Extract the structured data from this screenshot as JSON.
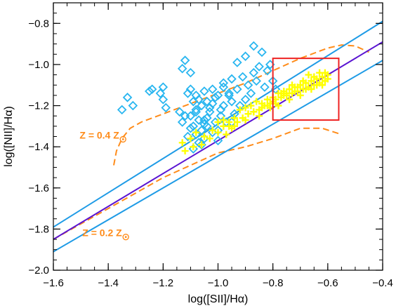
{
  "chart_data": {
    "type": "scatter",
    "xlabel": "log([SII]/Hα)",
    "ylabel": "log([NII]/Hα)",
    "xlim": [
      -1.6,
      -0.4
    ],
    "ylim": [
      -2.0,
      -0.7
    ],
    "x_ticks": [
      "−1.6",
      "−1.4",
      "−1.2",
      "−1.0",
      "−0.8",
      "−0.6",
      "−0.4"
    ],
    "y_ticks": [
      "−2.0",
      "−1.8",
      "−1.6",
      "−1.4",
      "−1.2",
      "−1.0",
      "−0.8"
    ],
    "x_tick_values": [
      -1.6,
      -1.4,
      -1.2,
      -1.0,
      -0.8,
      -0.6,
      -0.4
    ],
    "y_tick_values": [
      -2.0,
      -1.8,
      -1.6,
      -1.4,
      -1.2,
      -1.0,
      -0.8
    ],
    "grid": false,
    "colors": {
      "diamond": "#29b6f0",
      "plus": "#ffff00",
      "orange": "#ff8c1a",
      "purple": "#5a14d2",
      "blue_line": "#1e9be6",
      "rect": "#ee2222"
    },
    "annotations": [
      {
        "text": "Z = 0.4 Z",
        "x": -1.36,
        "y": -1.36
      },
      {
        "text": "Z = 0.2 Z",
        "x": -1.35,
        "y": -1.835
      }
    ],
    "fit_line": {
      "name": "",
      "x": [
        -1.6,
        -0.4
      ],
      "y": [
        -1.85,
        -0.89
      ]
    },
    "bounds_upper": {
      "x": [
        -1.6,
        -0.4
      ],
      "y": [
        -1.79,
        -0.79
      ]
    },
    "bounds_lower": {
      "x": [
        -1.6,
        -0.4
      ],
      "y": [
        -1.91,
        -0.98
      ]
    },
    "model_track_low": {
      "x": [
        -1.6,
        -1.4,
        -1.2,
        -1.0,
        -0.9,
        -0.8,
        -0.7,
        -0.62,
        -0.55
      ],
      "y": [
        -1.85,
        -1.7,
        -1.55,
        -1.43,
        -1.4,
        -1.36,
        -1.31,
        -1.31,
        -1.34
      ]
    },
    "model_track_high": {
      "x": [
        -1.38,
        -1.37,
        -1.35,
        -1.32,
        -1.28,
        -1.2,
        -1.1,
        -1.0,
        -0.9,
        -0.8,
        -0.7,
        -0.6,
        -0.55,
        -0.5,
        -0.45
      ],
      "y": [
        -1.49,
        -1.42,
        -1.36,
        -1.31,
        -1.28,
        -1.24,
        -1.19,
        -1.14,
        -1.09,
        -1.03,
        -0.97,
        -0.92,
        -0.905,
        -0.91,
        -0.94
      ]
    },
    "selection_box": {
      "x": [
        -0.8,
        -0.56
      ],
      "y": [
        -1.27,
        -0.97
      ]
    },
    "series": [
      {
        "marker": "diamond",
        "x": [
          -1.35,
          -1.33,
          -1.31,
          -1.25,
          -1.24,
          -1.21,
          -1.2,
          -1.2,
          -1.19,
          -1.13,
          -1.12,
          -1.1,
          -1.1,
          -1.1,
          -1.09,
          -1.09,
          -1.08,
          -1.08,
          -1.08,
          -1.07,
          -1.07,
          -1.06,
          -1.06,
          -1.05,
          -1.05,
          -1.05,
          -1.04,
          -1.04,
          -1.03,
          -1.02,
          -1.02,
          -1.01,
          -1.0,
          -1.0,
          -0.99,
          -0.98,
          -0.98,
          -0.97,
          -0.96,
          -0.95,
          -0.95,
          -0.94,
          -0.93,
          -0.93,
          -0.92,
          -0.91,
          -0.9,
          -0.9,
          -0.89,
          -0.88,
          -0.87,
          -0.87,
          -0.86,
          -0.85,
          -0.84,
          -0.83,
          -0.82,
          -0.81,
          -0.8,
          -0.79,
          -1.14,
          -1.13,
          -1.12,
          -1.11,
          -1.11,
          -1.1,
          -1.09,
          -1.08,
          -1.07,
          -1.06,
          -1.05,
          -1.04,
          -1.03,
          -1.02,
          -1.01,
          -1.0,
          -0.99,
          -0.98,
          -0.96,
          -0.95
        ],
        "y": [
          -1.22,
          -1.16,
          -1.2,
          -1.13,
          -1.12,
          -1.14,
          -1.11,
          -1.17,
          -1.21,
          -1.02,
          -0.98,
          -1.04,
          -1.12,
          -1.25,
          -1.18,
          -1.3,
          -1.15,
          -1.23,
          -1.34,
          -1.27,
          -1.38,
          -1.2,
          -1.32,
          -1.13,
          -1.27,
          -1.36,
          -1.18,
          -1.3,
          -1.23,
          -1.12,
          -1.33,
          -1.28,
          -1.15,
          -1.37,
          -1.25,
          -1.2,
          -1.11,
          -1.28,
          -1.14,
          -1.18,
          -1.07,
          -1.24,
          -1.12,
          -0.99,
          -1.2,
          -1.06,
          -1.17,
          -0.96,
          -1.1,
          -1.14,
          -1.04,
          -0.91,
          -1.08,
          -1.01,
          -0.94,
          -1.11,
          -1.03,
          -1.0,
          -1.08,
          -1.12,
          -1.23,
          -1.28,
          -1.25,
          -1.14,
          -1.35,
          -1.31,
          -1.41,
          -1.22,
          -1.17,
          -1.39,
          -1.29,
          -1.26,
          -1.21,
          -1.19,
          -1.16,
          -1.32,
          -1.22,
          -1.09,
          -1.15,
          -1.28
        ]
      },
      {
        "marker": "plus",
        "x": [
          -1.13,
          -1.12,
          -1.1,
          -1.09,
          -1.08,
          -1.06,
          -1.05,
          -1.03,
          -1.02,
          -1.0,
          -0.98,
          -0.97,
          -0.96,
          -0.95,
          -0.94,
          -0.93,
          -0.92,
          -0.91,
          -0.9,
          -0.89,
          -0.88,
          -0.87,
          -0.86,
          -0.85,
          -0.84,
          -0.83,
          -0.82,
          -0.81,
          -0.8,
          -0.79,
          -0.78,
          -0.77,
          -0.76,
          -0.75,
          -0.74,
          -0.73,
          -0.72,
          -0.71,
          -0.7,
          -0.69,
          -0.68,
          -0.67,
          -0.66,
          -0.65,
          -0.64,
          -0.63,
          -0.62,
          -0.61,
          -0.6,
          -0.85,
          -0.82,
          -0.8,
          -0.78,
          -0.76,
          -0.74,
          -0.72,
          -0.7,
          -0.68,
          -0.66,
          -0.64,
          -0.62,
          -0.61,
          -0.9,
          -0.87,
          -0.84,
          -0.81,
          -0.79,
          -0.77,
          -0.75,
          -0.73,
          -0.71,
          -0.69,
          -0.67,
          -0.65,
          -0.63,
          -0.6,
          -0.94,
          -0.96,
          -0.98,
          -1.0
        ],
        "y": [
          -1.38,
          -1.42,
          -1.36,
          -1.4,
          -1.33,
          -1.39,
          -1.35,
          -1.36,
          -1.32,
          -1.33,
          -1.3,
          -1.34,
          -1.28,
          -1.31,
          -1.26,
          -1.28,
          -1.22,
          -1.26,
          -1.21,
          -1.24,
          -1.2,
          -1.23,
          -1.18,
          -1.22,
          -1.19,
          -1.2,
          -1.17,
          -1.19,
          -1.16,
          -1.17,
          -1.14,
          -1.16,
          -1.13,
          -1.15,
          -1.12,
          -1.14,
          -1.11,
          -1.13,
          -1.1,
          -1.12,
          -1.09,
          -1.11,
          -1.08,
          -1.1,
          -1.07,
          -1.09,
          -1.06,
          -1.08,
          -1.07,
          -1.25,
          -1.2,
          -1.18,
          -1.2,
          -1.15,
          -1.17,
          -1.13,
          -1.15,
          -1.12,
          -1.12,
          -1.1,
          -1.1,
          -1.04,
          -1.27,
          -1.23,
          -1.21,
          -1.21,
          -1.19,
          -1.14,
          -1.14,
          -1.1,
          -1.11,
          -1.08,
          -1.05,
          -1.06,
          -1.04,
          -1.05,
          -1.3,
          -1.3,
          -1.27,
          -1.28
        ]
      }
    ]
  }
}
